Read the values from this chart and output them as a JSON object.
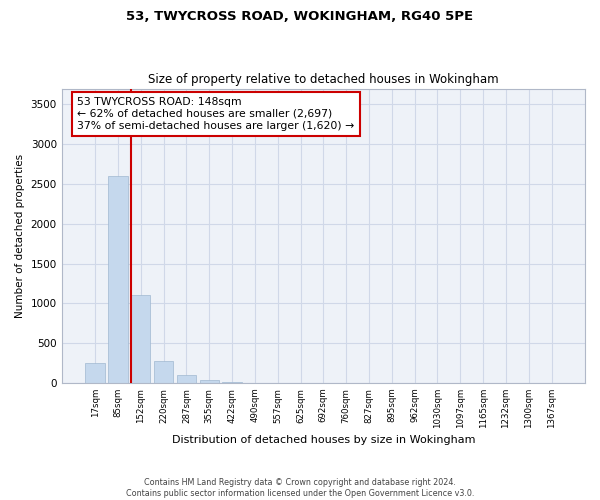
{
  "title1": "53, TWYCROSS ROAD, WOKINGHAM, RG40 5PE",
  "title2": "Size of property relative to detached houses in Wokingham",
  "xlabel": "Distribution of detached houses by size in Wokingham",
  "ylabel": "Number of detached properties",
  "footnote": "Contains HM Land Registry data © Crown copyright and database right 2024.\nContains public sector information licensed under the Open Government Licence v3.0.",
  "bar_labels": [
    "17sqm",
    "85sqm",
    "152sqm",
    "220sqm",
    "287sqm",
    "355sqm",
    "422sqm",
    "490sqm",
    "557sqm",
    "625sqm",
    "692sqm",
    "760sqm",
    "827sqm",
    "895sqm",
    "962sqm",
    "1030sqm",
    "1097sqm",
    "1165sqm",
    "1232sqm",
    "1300sqm",
    "1367sqm"
  ],
  "bar_values": [
    250,
    2600,
    1100,
    270,
    95,
    35,
    5,
    0,
    0,
    0,
    0,
    0,
    0,
    0,
    0,
    0,
    0,
    0,
    0,
    0,
    0
  ],
  "bar_color": "#c5d8ed",
  "bar_edge_color": "#a0b8d0",
  "grid_color": "#d0d8e8",
  "background_color": "#eef2f8",
  "vline_color": "#cc0000",
  "annotation_text": "53 TWYCROSS ROAD: 148sqm\n← 62% of detached houses are smaller (2,697)\n37% of semi-detached houses are larger (1,620) →",
  "annotation_box_color": "white",
  "annotation_box_edge": "#cc0000",
  "ylim": [
    0,
    3700
  ],
  "yticks": [
    0,
    500,
    1000,
    1500,
    2000,
    2500,
    3000,
    3500
  ]
}
